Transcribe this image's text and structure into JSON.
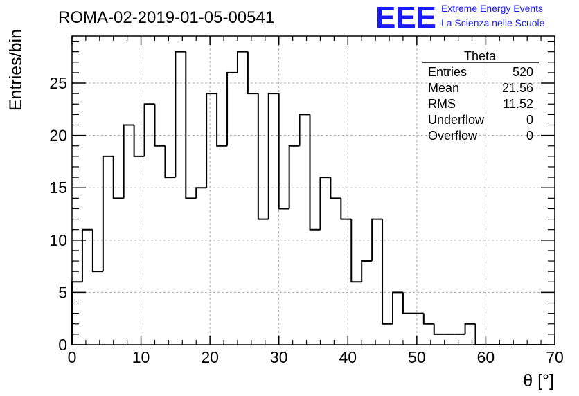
{
  "title": "ROMA-02-2019-01-05-00541",
  "logo": {
    "mark": "EEE",
    "line1": "Extreme Energy Events",
    "line2": "La Scienza nelle Scuole",
    "color": "#1a1aff"
  },
  "stats": {
    "name": "Theta",
    "rows": [
      {
        "label": "Entries",
        "value": "520"
      },
      {
        "label": "Mean",
        "value": "21.56"
      },
      {
        "label": "RMS",
        "value": "11.52"
      },
      {
        "label": "Underflow",
        "value": "0"
      },
      {
        "label": "Overflow",
        "value": "0"
      }
    ]
  },
  "chart_data": {
    "type": "bar",
    "style": "step-histogram",
    "title": "ROMA-02-2019-01-05-00541",
    "xlabel": "θ [°]",
    "ylabel": "Entries/bin",
    "xlim": [
      0,
      70
    ],
    "ylim": [
      0,
      29.5
    ],
    "grid": true,
    "bin_width": 1.5,
    "bin_start": 0,
    "x_ticks": [
      0,
      10,
      20,
      30,
      40,
      50,
      60,
      70
    ],
    "y_ticks": [
      0,
      5,
      10,
      15,
      20,
      25
    ],
    "values": [
      6,
      11,
      7,
      18,
      14,
      21,
      18,
      23,
      19,
      16,
      28,
      14,
      15,
      24,
      19,
      26,
      28,
      24,
      12,
      24,
      13,
      19,
      22,
      11,
      16,
      14,
      12,
      6,
      8,
      12,
      2,
      5,
      3,
      3,
      2,
      1,
      1,
      1,
      2,
      0,
      0,
      0,
      0,
      0,
      0,
      0
    ]
  }
}
